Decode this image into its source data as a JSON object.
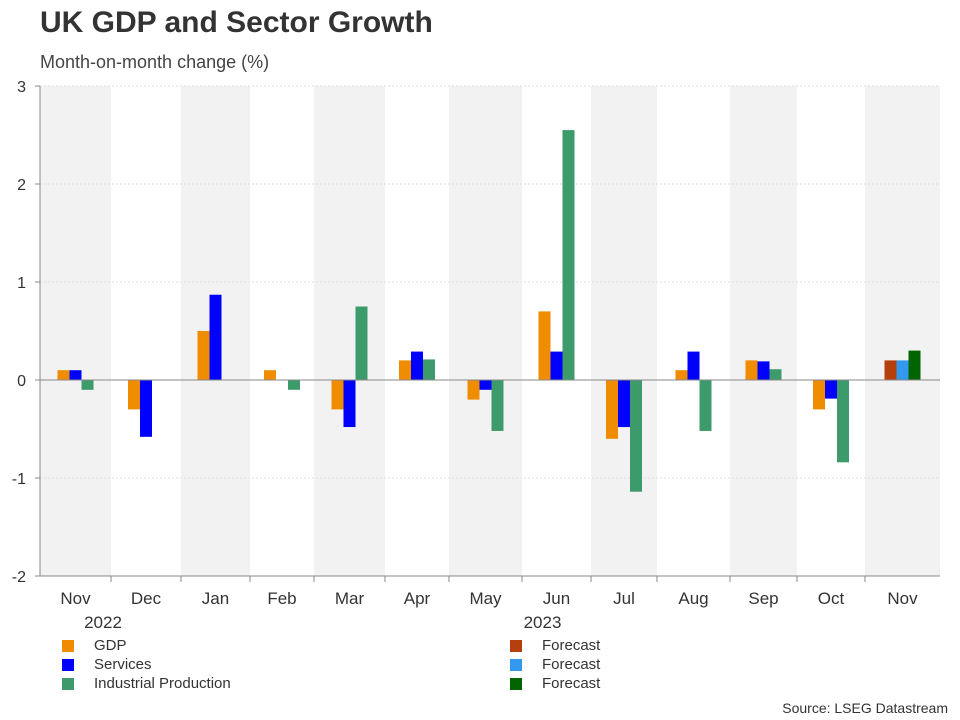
{
  "chart_data": {
    "type": "bar",
    "title": "UK GDP and Sector Growth",
    "subtitle": "Month-on-month change (%)",
    "source": "Source: LSEG Datastream",
    "categories": [
      "Nov",
      "Dec",
      "Jan",
      "Feb",
      "Mar",
      "Apr",
      "May",
      "Jun",
      "Jul",
      "Aug",
      "Sep",
      "Oct",
      "Nov"
    ],
    "year_labels": [
      {
        "label": "2022",
        "category_index": 1
      },
      {
        "label": "2023",
        "category_index": 7
      }
    ],
    "ylim": [
      -2,
      3
    ],
    "yticks": [
      -2,
      -1,
      0,
      1,
      2,
      3
    ],
    "ytick_labels": [
      "-2",
      "-1",
      "0",
      "1",
      "2",
      "3"
    ],
    "grid": true,
    "legend_position": "bottom",
    "series": [
      {
        "name": "GDP",
        "color": "#F08C00",
        "values": [
          0.1,
          -0.3,
          0.5,
          0.1,
          -0.3,
          0.2,
          -0.2,
          0.7,
          -0.6,
          0.1,
          0.2,
          -0.3,
          null
        ]
      },
      {
        "name": "Services",
        "color": "#0000FF",
        "values": [
          0.1,
          -0.58,
          0.87,
          0.0,
          -0.48,
          0.29,
          -0.1,
          0.29,
          -0.48,
          0.29,
          0.19,
          -0.19,
          null
        ]
      },
      {
        "name": "Industrial Production",
        "color": "#3D9B6B",
        "values": [
          -0.1,
          0.0,
          0.0,
          -0.1,
          0.75,
          0.21,
          -0.52,
          2.55,
          -1.14,
          -0.52,
          0.11,
          -0.84,
          null
        ]
      },
      {
        "name": "Forecast",
        "color": "#B5400E",
        "values": [
          null,
          null,
          null,
          null,
          null,
          null,
          null,
          null,
          null,
          null,
          null,
          null,
          0.2
        ]
      },
      {
        "name": "Forecast",
        "color": "#3399EE",
        "values": [
          null,
          null,
          null,
          null,
          null,
          null,
          null,
          null,
          null,
          null,
          null,
          null,
          0.2
        ]
      },
      {
        "name": "Forecast",
        "color": "#006400",
        "values": [
          null,
          null,
          null,
          null,
          null,
          null,
          null,
          null,
          null,
          null,
          null,
          null,
          0.3
        ]
      }
    ],
    "colors": {
      "band": "#F2F2F2",
      "grid": "#DDDDDD",
      "axis": "#888888",
      "zero": "#888888"
    }
  }
}
